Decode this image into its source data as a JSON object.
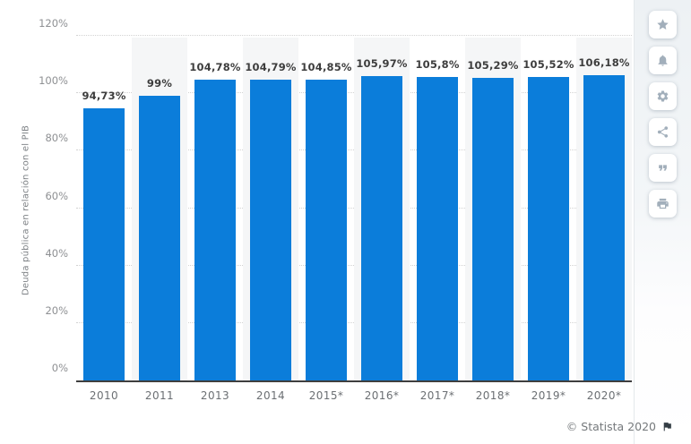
{
  "chart_data": {
    "type": "bar",
    "title": "",
    "xlabel": "",
    "ylabel": "Deuda pública en relación con el PIB",
    "categories": [
      "2010",
      "2011",
      "2013",
      "2014",
      "2015*",
      "2016*",
      "2017*",
      "2018*",
      "2019*",
      "2020*"
    ],
    "values": [
      94.73,
      99,
      104.78,
      104.79,
      104.85,
      105.97,
      105.8,
      105.29,
      105.52,
      106.18
    ],
    "value_labels": [
      "94,73%",
      "99%",
      "104,78%",
      "104,79%",
      "104,85%",
      "105,97%",
      "105,8%",
      "105,29%",
      "105,52%",
      "106,18%"
    ],
    "ylim": [
      0,
      120
    ],
    "yticks": [
      {
        "label": "0%",
        "value": 0
      },
      {
        "label": "20%",
        "value": 20
      },
      {
        "label": "40%",
        "value": 40
      },
      {
        "label": "60%",
        "value": 60
      },
      {
        "label": "80%",
        "value": 80
      },
      {
        "label": "100%",
        "value": 100
      },
      {
        "label": "120%",
        "value": 120
      }
    ],
    "grid": "horizontal-dotted",
    "legend": "none",
    "banded_category_indexes": [
      1,
      3,
      5,
      7,
      9
    ],
    "colors": {
      "bar": "#0b7dda",
      "band": "#f5f6f7",
      "gridline": "#d2d2d2",
      "axis_line": "#3f3f3f",
      "value_label": "#3d3d3d",
      "tick_label": "#8e9093"
    }
  },
  "toolbar": {
    "buttons": [
      {
        "name": "favorite-button",
        "icon": "star-icon"
      },
      {
        "name": "alerts-button",
        "icon": "bell-icon"
      },
      {
        "name": "settings-button",
        "icon": "gear-icon"
      },
      {
        "name": "share-button",
        "icon": "share-icon"
      },
      {
        "name": "cite-button",
        "icon": "quote-icon"
      },
      {
        "name": "print-button",
        "icon": "printer-icon"
      }
    ]
  },
  "footer": {
    "copyright": "© Statista 2020",
    "icon": "flag-icon"
  }
}
